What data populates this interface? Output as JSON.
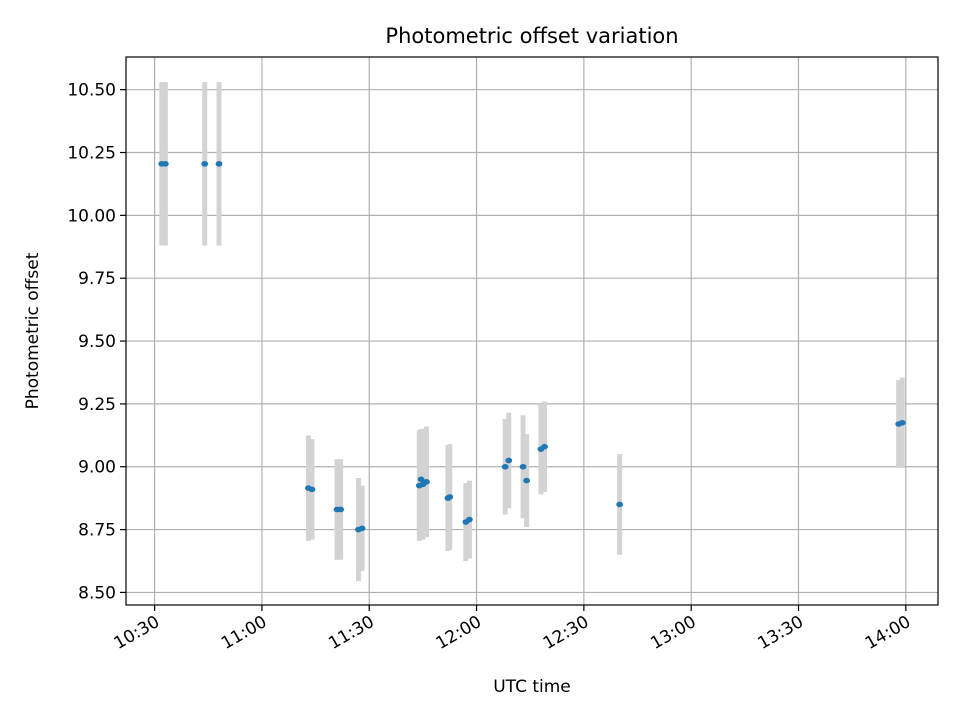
{
  "chart_data": {
    "type": "scatter",
    "title": "Photometric offset variation",
    "xlabel": "UTC time",
    "ylabel": "Photometric offset",
    "x_ticks": [
      "10:30",
      "11:00",
      "11:30",
      "12:00",
      "12:30",
      "13:00",
      "13:30",
      "14:00"
    ],
    "y_ticks": [
      "8.50",
      "8.75",
      "9.00",
      "9.25",
      "9.50",
      "9.75",
      "10.00",
      "10.25",
      "10.50"
    ],
    "xlim": [
      "10:22",
      "14:09"
    ],
    "ylim": [
      8.45,
      10.63
    ],
    "grid": true,
    "colors": {
      "points": "#1f77b4",
      "errorbars": "#d3d3d3"
    },
    "points": [
      {
        "x": "10:32",
        "y": 10.205,
        "err": 0.325
      },
      {
        "x": "10:33",
        "y": 10.205,
        "err": 0.325
      },
      {
        "x": "10:44",
        "y": 10.205,
        "err": 0.325
      },
      {
        "x": "10:48",
        "y": 10.205,
        "err": 0.325
      },
      {
        "x": "11:13",
        "y": 8.915,
        "err": 0.21
      },
      {
        "x": "11:14",
        "y": 8.91,
        "err": 0.2
      },
      {
        "x": "11:21",
        "y": 8.83,
        "err": 0.2
      },
      {
        "x": "11:22",
        "y": 8.83,
        "err": 0.2
      },
      {
        "x": "11:27",
        "y": 8.75,
        "err": 0.205
      },
      {
        "x": "11:28",
        "y": 8.755,
        "err": 0.17
      },
      {
        "x": "11:44",
        "y": 8.925,
        "err": 0.22
      },
      {
        "x": "11:44.5",
        "y": 8.95,
        "err": 0.2
      },
      {
        "x": "11:45",
        "y": 8.93,
        "err": 0.22
      },
      {
        "x": "11:46",
        "y": 8.94,
        "err": 0.22
      },
      {
        "x": "11:52",
        "y": 8.875,
        "err": 0.21
      },
      {
        "x": "11:52.5",
        "y": 8.88,
        "err": 0.21
      },
      {
        "x": "11:57",
        "y": 8.78,
        "err": 0.155
      },
      {
        "x": "11:58",
        "y": 8.79,
        "err": 0.155
      },
      {
        "x": "12:08",
        "y": 9.0,
        "err": 0.19
      },
      {
        "x": "12:09",
        "y": 9.025,
        "err": 0.19
      },
      {
        "x": "12:13",
        "y": 9.0,
        "err": 0.205
      },
      {
        "x": "12:14",
        "y": 8.945,
        "err": 0.185
      },
      {
        "x": "12:18",
        "y": 9.07,
        "err": 0.18
      },
      {
        "x": "12:19",
        "y": 9.08,
        "err": 0.18
      },
      {
        "x": "12:40",
        "y": 8.85,
        "err": 0.2
      },
      {
        "x": "13:58",
        "y": 9.17,
        "err": 0.175
      },
      {
        "x": "13:59",
        "y": 9.175,
        "err": 0.18
      }
    ]
  }
}
